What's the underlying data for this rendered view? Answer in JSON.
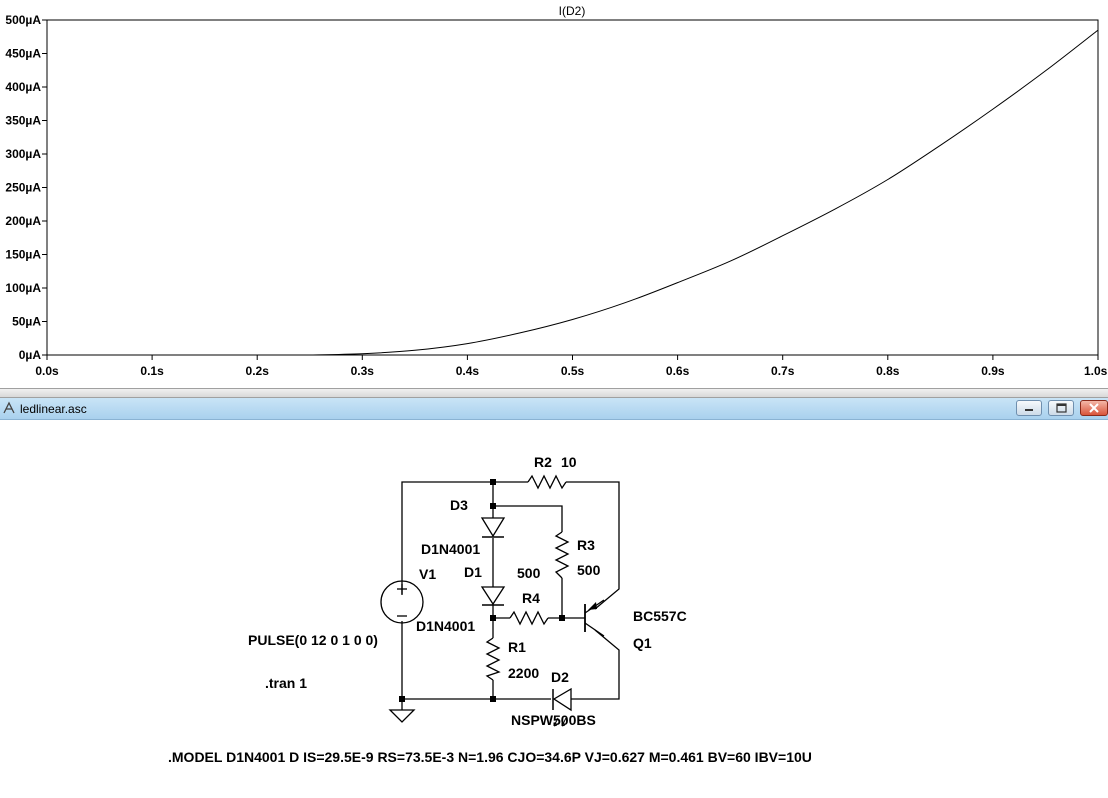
{
  "plot": {
    "trace_label": "I(D2)",
    "y_ticks": [
      "0µA",
      "50µA",
      "100µA",
      "150µA",
      "200µA",
      "250µA",
      "300µA",
      "350µA",
      "400µA",
      "450µA",
      "500µA"
    ],
    "x_ticks": [
      "0.0s",
      "0.1s",
      "0.2s",
      "0.3s",
      "0.4s",
      "0.5s",
      "0.6s",
      "0.7s",
      "0.8s",
      "0.9s",
      "1.0s"
    ]
  },
  "chart_data": {
    "type": "line",
    "title": "I(D2)",
    "xlim": [
      0,
      1.0
    ],
    "ylim": [
      0,
      500
    ],
    "grid": false,
    "series": [
      {
        "name": "I(D2)",
        "x": [
          0.0,
          0.25,
          0.3,
          0.35,
          0.4,
          0.45,
          0.5,
          0.55,
          0.6,
          0.65,
          0.7,
          0.75,
          0.8,
          0.85,
          0.9,
          0.95,
          1.0
        ],
        "y": [
          0,
          0,
          2,
          7,
          17,
          33,
          53,
          78,
          108,
          140,
          178,
          218,
          262,
          313,
          367,
          424,
          485
        ]
      }
    ]
  },
  "window": {
    "title": "ledlinear.asc",
    "icon": "schematic-icon",
    "buttons": [
      "minimize-icon",
      "maximize-icon",
      "close-icon"
    ]
  },
  "schematic": {
    "r2_label": "R2",
    "r2_value": "10",
    "d3_label": "D3",
    "d3_model": "D1N4001",
    "d1_label": "D1",
    "d1_model": "D1N4001",
    "r3_label": "R3",
    "r3_value": "500",
    "r4_label": "R4",
    "r4_value": "500",
    "v1_label": "V1",
    "v1_value": "PULSE(0 12 0 1 0 0)",
    "tran_directive": ".tran 1",
    "r1_label": "R1",
    "r1_value": "2200",
    "d2_label": "D2",
    "d2_model": "NSPW500BS",
    "q1_model": "BC557C",
    "q1_label": "Q1",
    "model_directive": ".MODEL D1N4001 D IS=29.5E-9 RS=73.5E-3 N=1.96 CJO=34.6P VJ=0.627 M=0.461 BV=60 IBV=10U"
  }
}
